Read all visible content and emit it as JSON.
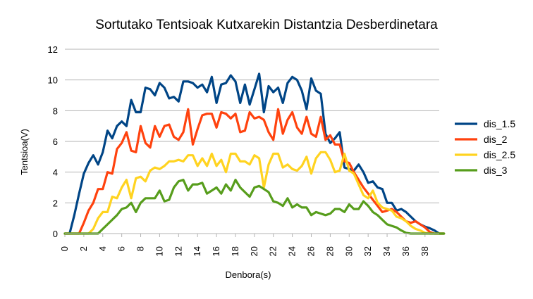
{
  "chart_data": {
    "type": "line",
    "title": "Sortutako Tentsioak Kutxarekin Distantzia Desberdinetara",
    "xlabel": "Denbora(s)",
    "ylabel": "Tentsioa(V)",
    "xlim": [
      0,
      39.5
    ],
    "ylim": [
      0,
      12
    ],
    "xticks": [
      0,
      2,
      4,
      6,
      8,
      10,
      12,
      14,
      16,
      18,
      20,
      22,
      24,
      26,
      28,
      30,
      32,
      34,
      36,
      38
    ],
    "yticks": [
      0,
      2,
      4,
      6,
      8,
      10,
      12
    ],
    "grid": "horizontal",
    "legend": "right",
    "x_step": 0.5,
    "series": [
      {
        "name": "dis_1.5",
        "color": "#004586",
        "values": [
          0,
          0,
          1.2,
          2.6,
          3.9,
          4.6,
          5.1,
          4.5,
          5.3,
          6.7,
          6.2,
          7.0,
          7.3,
          7.0,
          8.7,
          7.9,
          7.9,
          9.5,
          9.4,
          9.0,
          9.8,
          9.5,
          8.8,
          8.9,
          8.6,
          9.9,
          9.9,
          9.8,
          9.5,
          9.7,
          9.2,
          10.2,
          8.5,
          9.7,
          9.8,
          10.3,
          9.9,
          8.5,
          9.7,
          8.4,
          9.4,
          10.4,
          7.9,
          9.6,
          9.2,
          9.5,
          8.5,
          9.8,
          10.2,
          10.0,
          9.3,
          8.1,
          10.1,
          9.3,
          9.1,
          6.5,
          5.9,
          6.2,
          6.6,
          4.3,
          4.2,
          4.1,
          4.5,
          4.0,
          3.3,
          3.4,
          3.0,
          2.9,
          2.0,
          2.0,
          1.5,
          1.6,
          1.4,
          1.1,
          0.8,
          0.6,
          0.45,
          0.35,
          0.2,
          0,
          0
        ]
      },
      {
        "name": "dis_2",
        "color": "#ff420e",
        "values": [
          0,
          0,
          0,
          0,
          0.7,
          1.5,
          2.0,
          2.9,
          2.9,
          4.0,
          3.9,
          5.5,
          5.9,
          6.6,
          5.4,
          5.3,
          7.0,
          5.9,
          5.6,
          7.0,
          6.3,
          7.0,
          7.1,
          6.3,
          6.1,
          6.6,
          8.1,
          5.8,
          6.8,
          7.7,
          7.8,
          7.8,
          6.9,
          7.9,
          7.8,
          7.5,
          7.8,
          6.6,
          6.7,
          7.9,
          7.5,
          7.6,
          7.4,
          6.6,
          6.1,
          8.1,
          6.5,
          7.4,
          7.9,
          6.9,
          6.5,
          7.6,
          6.5,
          6.3,
          7.6,
          6.1,
          6.4,
          5.8,
          5.8,
          4.7,
          4.6,
          4.0,
          3.5,
          3.0,
          2.6,
          2.2,
          1.8,
          1.4,
          1.5,
          1.6,
          1.4,
          1.1,
          0.8,
          0.7,
          0.8,
          0.6,
          0.4,
          0.1,
          0,
          0,
          0
        ]
      },
      {
        "name": "dis_2.5",
        "color": "#ffd320",
        "values": [
          0,
          0,
          0,
          0,
          0,
          0,
          0.3,
          1.0,
          1.4,
          1.4,
          2.4,
          2.3,
          3.0,
          3.5,
          2.3,
          3.6,
          3.7,
          3.4,
          4.1,
          4.3,
          4.2,
          4.4,
          4.7,
          4.7,
          4.8,
          4.7,
          5.1,
          5.1,
          4.4,
          4.9,
          4.4,
          5.2,
          4.4,
          4.8,
          4.0,
          5.2,
          5.2,
          4.7,
          4.7,
          4.5,
          5.1,
          4.9,
          3.0,
          4.5,
          5.2,
          5.2,
          4.3,
          4.5,
          4.2,
          4.1,
          4.4,
          5.0,
          3.9,
          4.9,
          5.3,
          5.3,
          4.8,
          4.0,
          4.1,
          5.2,
          4.1,
          3.9,
          3.2,
          2.5,
          2.3,
          2.8,
          2.0,
          1.7,
          1.6,
          1.5,
          1.1,
          1.0,
          0.8,
          0.5,
          0.3,
          0.2,
          0.05,
          0,
          0,
          0,
          0
        ]
      },
      {
        "name": "dis_3",
        "color": "#579d1c",
        "values": [
          0,
          0,
          0,
          0,
          0,
          0,
          0,
          0,
          0.3,
          0.6,
          0.9,
          1.2,
          1.6,
          1.7,
          2.0,
          1.4,
          2.0,
          2.3,
          2.3,
          2.3,
          2.8,
          2.1,
          2.2,
          3.0,
          3.4,
          3.5,
          2.8,
          3.2,
          3.2,
          3.3,
          2.6,
          2.8,
          3.0,
          2.6,
          3.2,
          2.8,
          3.5,
          3.0,
          2.7,
          2.4,
          3.0,
          3.1,
          2.9,
          2.7,
          2.1,
          2.0,
          1.8,
          2.3,
          1.7,
          1.9,
          1.7,
          1.7,
          1.2,
          1.4,
          1.3,
          1.2,
          1.3,
          1.6,
          1.6,
          1.4,
          1.9,
          1.6,
          1.6,
          2.1,
          1.8,
          1.4,
          1.2,
          0.9,
          0.6,
          0.5,
          0.4,
          0.2,
          0.05,
          0,
          0,
          0,
          0,
          0,
          0,
          0,
          0
        ]
      }
    ]
  }
}
